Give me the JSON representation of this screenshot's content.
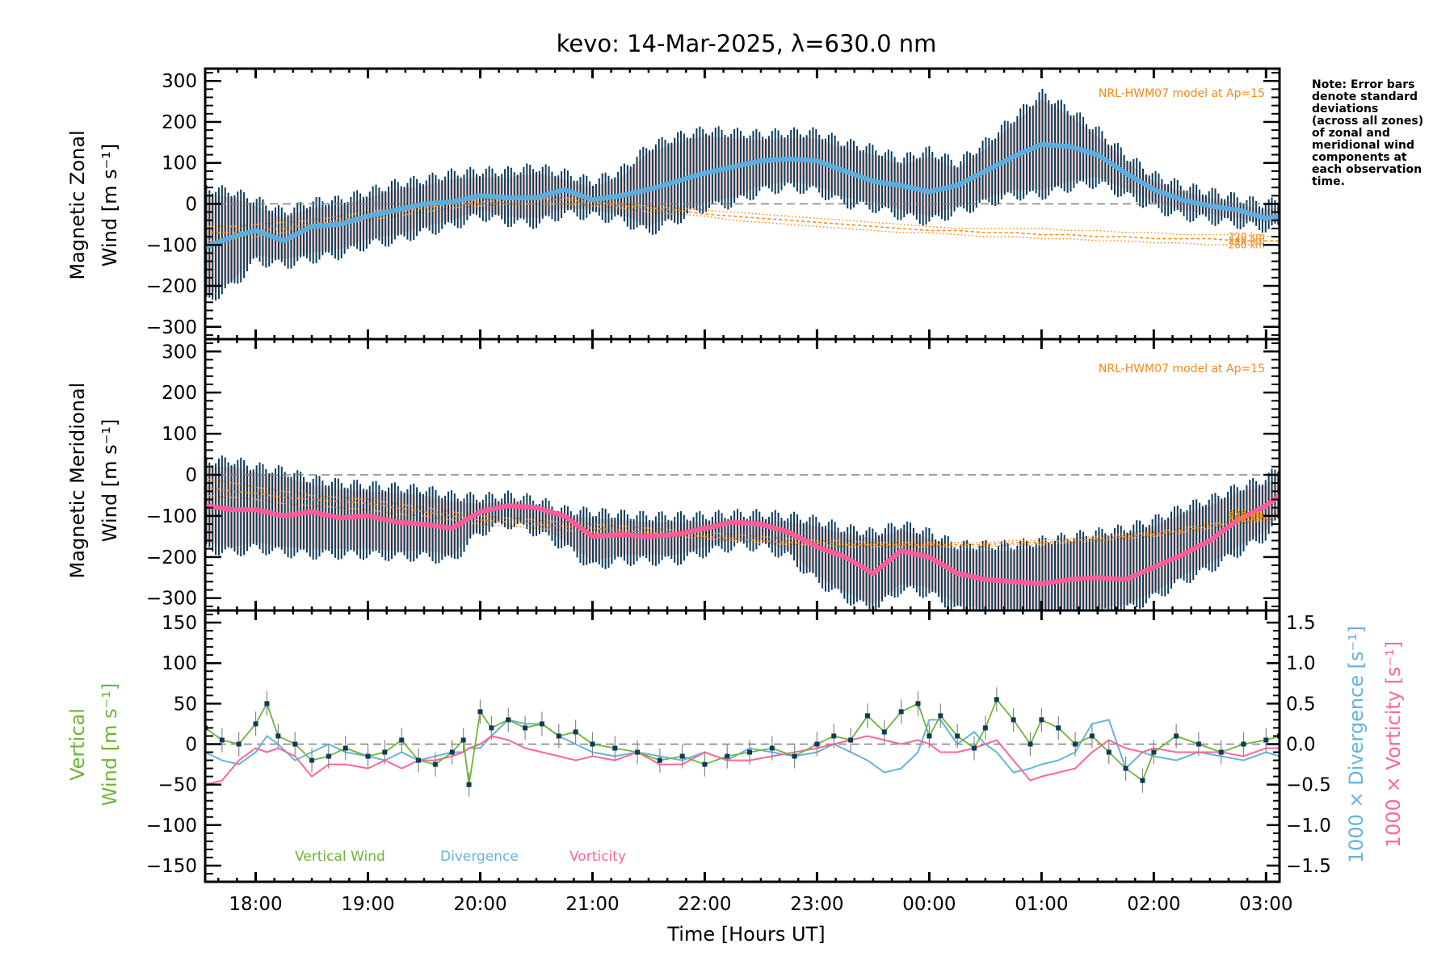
{
  "figure": {
    "title": "kevo: 14-Mar-2025, λ=630.0 nm",
    "note_lines": [
      "Note: Error bars",
      "denote standard",
      "deviations",
      "(across all zones)",
      "of zonal and",
      "meridional wind",
      "components at",
      "each observation",
      "time."
    ],
    "colors": {
      "zonal_mean": "#5aaee0",
      "meridional_mean": "#ff5a99",
      "errorbar": "#0d3b5c",
      "vertical": "#6fb535",
      "divergence": "#66b3dd",
      "vorticity": "#ff6699",
      "model": "#f28a17",
      "zero_line": "#808080",
      "scatter_lilac": "#b7b3de",
      "scatter_salmon": "#f9b8a6",
      "scatter_tan": "#fde0a6"
    }
  },
  "chart_data": [
    {
      "type": "line",
      "panel": "zonal",
      "ylabel_line1": "Magnetic Zonal",
      "ylabel_line2": "Wind [m s⁻¹]",
      "ylim": [
        -330,
        330
      ],
      "yticks": [
        300,
        200,
        100,
        0,
        -100,
        -200,
        -300
      ],
      "xlim_hours": [
        17.55,
        27.12
      ],
      "model_label": "NRL-HWM07 model at Ap=15",
      "model_altitudes": [
        "220 km",
        "240 km",
        "260 km"
      ],
      "zero_line": true,
      "x_hours": [
        17.55,
        17.8,
        18.0,
        18.25,
        18.5,
        18.75,
        19.0,
        19.25,
        19.5,
        19.75,
        20.0,
        20.25,
        20.5,
        20.75,
        21.0,
        21.25,
        21.5,
        21.75,
        22.0,
        22.25,
        22.5,
        22.75,
        23.0,
        23.25,
        23.5,
        23.75,
        24.0,
        24.25,
        24.5,
        24.75,
        25.0,
        25.25,
        25.5,
        25.75,
        26.0,
        26.25,
        26.5,
        26.75,
        27.0,
        27.12
      ],
      "series": [
        {
          "name": "Zonal mean",
          "values": [
            -105,
            -80,
            -65,
            -90,
            -55,
            -50,
            -30,
            -15,
            0,
            5,
            20,
            15,
            15,
            35,
            10,
            20,
            35,
            55,
            75,
            90,
            105,
            110,
            105,
            80,
            55,
            45,
            30,
            45,
            80,
            115,
            145,
            140,
            120,
            75,
            35,
            10,
            -5,
            -15,
            -35,
            -30
          ]
        },
        {
          "name": "Zonal std upper",
          "values": [
            40,
            30,
            10,
            -20,
            5,
            10,
            30,
            50,
            60,
            75,
            80,
            80,
            90,
            75,
            55,
            80,
            140,
            165,
            180,
            175,
            170,
            175,
            175,
            150,
            135,
            110,
            130,
            100,
            150,
            210,
            270,
            230,
            180,
            120,
            70,
            45,
            30,
            15,
            0,
            10
          ]
        },
        {
          "name": "Zonal std lower",
          "values": [
            -240,
            -200,
            -140,
            -150,
            -135,
            -125,
            -100,
            -90,
            -70,
            -55,
            -30,
            -45,
            -50,
            -25,
            -30,
            -40,
            -70,
            -40,
            -10,
            0,
            30,
            40,
            30,
            0,
            -10,
            -30,
            -45,
            -20,
            0,
            20,
            20,
            40,
            50,
            20,
            -10,
            -30,
            -40,
            -50,
            -60,
            -60
          ]
        },
        {
          "name": "HWM07 220 km",
          "values": [
            -55,
            -55,
            -50,
            -45,
            -40,
            -30,
            -20,
            -10,
            -5,
            5,
            10,
            15,
            15,
            15,
            10,
            0,
            -5,
            -10,
            -15,
            -20,
            -25,
            -30,
            -35,
            -40,
            -45,
            -50,
            -55,
            -60,
            -60,
            -60,
            -60,
            -65,
            -65,
            -70,
            -70,
            -75,
            -75,
            -75,
            -80,
            -80
          ]
        },
        {
          "name": "HWM07 240 km",
          "values": [
            -70,
            -70,
            -65,
            -60,
            -50,
            -40,
            -30,
            -20,
            -10,
            0,
            5,
            10,
            10,
            10,
            5,
            -5,
            -10,
            -15,
            -25,
            -30,
            -35,
            -40,
            -45,
            -50,
            -55,
            -60,
            -65,
            -65,
            -70,
            -70,
            -75,
            -75,
            -80,
            -80,
            -85,
            -85,
            -85,
            -90,
            -90,
            -90
          ]
        },
        {
          "name": "HWM07 260 km",
          "values": [
            -90,
            -85,
            -80,
            -70,
            -60,
            -50,
            -40,
            -30,
            -20,
            -10,
            -5,
            0,
            0,
            0,
            -5,
            -10,
            -20,
            -25,
            -30,
            -40,
            -45,
            -50,
            -55,
            -60,
            -65,
            -70,
            -70,
            -75,
            -80,
            -80,
            -85,
            -85,
            -90,
            -90,
            -95,
            -95,
            -100,
            -100,
            -100,
            -100
          ]
        }
      ]
    },
    {
      "type": "line",
      "panel": "meridional",
      "ylabel_line1": "Magnetic Meridional",
      "ylabel_line2": "Wind [m s⁻¹]",
      "ylim": [
        -330,
        330
      ],
      "yticks": [
        300,
        200,
        100,
        0,
        -100,
        -200,
        -300
      ],
      "xlim_hours": [
        17.55,
        27.12
      ],
      "model_label": "NRL-HWM07 model at Ap=15",
      "model_altitudes": [
        "220 km",
        "240 km",
        "260 km"
      ],
      "zero_line": true,
      "x_hours": [
        17.55,
        17.8,
        18.0,
        18.25,
        18.5,
        18.75,
        19.0,
        19.25,
        19.5,
        19.75,
        20.0,
        20.25,
        20.5,
        20.75,
        21.0,
        21.25,
        21.5,
        21.75,
        22.0,
        22.25,
        22.5,
        22.75,
        23.0,
        23.25,
        23.5,
        23.75,
        24.0,
        24.25,
        24.5,
        24.75,
        25.0,
        25.25,
        25.5,
        25.75,
        26.0,
        26.25,
        26.5,
        26.75,
        27.0,
        27.12
      ],
      "series": [
        {
          "name": "Meridional mean",
          "values": [
            -75,
            -85,
            -85,
            -100,
            -90,
            -105,
            -100,
            -115,
            -120,
            -130,
            -90,
            -75,
            -80,
            -100,
            -150,
            -145,
            -150,
            -145,
            -130,
            -115,
            -120,
            -140,
            -175,
            -200,
            -240,
            -185,
            -200,
            -240,
            -255,
            -260,
            -265,
            -255,
            -250,
            -255,
            -225,
            -195,
            -160,
            -110,
            -75,
            -50
          ]
        },
        {
          "name": "Meridional std upper",
          "values": [
            35,
            35,
            20,
            10,
            -10,
            -20,
            -25,
            -30,
            -35,
            -50,
            -55,
            -50,
            -60,
            -85,
            -90,
            -95,
            -100,
            -100,
            -100,
            -95,
            -95,
            -100,
            -110,
            -130,
            -140,
            -120,
            -140,
            -170,
            -170,
            -170,
            -160,
            -150,
            -140,
            -130,
            -110,
            -80,
            -60,
            -30,
            -10,
            20
          ]
        },
        {
          "name": "Meridional std lower",
          "values": [
            -180,
            -190,
            -180,
            -190,
            -195,
            -195,
            -195,
            -200,
            -200,
            -210,
            -140,
            -120,
            -140,
            -175,
            -225,
            -210,
            -210,
            -210,
            -190,
            -175,
            -175,
            -200,
            -260,
            -300,
            -330,
            -280,
            -290,
            -330,
            -340,
            -340,
            -340,
            -340,
            -340,
            -330,
            -300,
            -260,
            -230,
            -190,
            -150,
            -110
          ]
        },
        {
          "name": "HWM07 220 km",
          "values": [
            -10,
            -20,
            -30,
            -40,
            -50,
            -55,
            -60,
            -70,
            -80,
            -90,
            -100,
            -105,
            -110,
            -115,
            -120,
            -125,
            -130,
            -135,
            -140,
            -145,
            -150,
            -155,
            -160,
            -160,
            -165,
            -165,
            -165,
            -165,
            -165,
            -160,
            -160,
            -155,
            -150,
            -145,
            -140,
            -130,
            -120,
            -110,
            -100,
            -95
          ]
        },
        {
          "name": "HWM07 240 km",
          "values": [
            -30,
            -40,
            -45,
            -55,
            -60,
            -65,
            -70,
            -80,
            -90,
            -100,
            -110,
            -115,
            -120,
            -125,
            -130,
            -135,
            -140,
            -145,
            -150,
            -155,
            -160,
            -165,
            -165,
            -170,
            -170,
            -170,
            -170,
            -170,
            -170,
            -165,
            -165,
            -160,
            -155,
            -150,
            -145,
            -135,
            -125,
            -115,
            -105,
            -100
          ]
        },
        {
          "name": "HWM07 260 km",
          "values": [
            -50,
            -55,
            -60,
            -70,
            -75,
            -80,
            -85,
            -95,
            -100,
            -110,
            -120,
            -125,
            -130,
            -135,
            -140,
            -145,
            -150,
            -150,
            -155,
            -160,
            -165,
            -170,
            -170,
            -175,
            -175,
            -175,
            -175,
            -175,
            -175,
            -170,
            -170,
            -165,
            -160,
            -155,
            -150,
            -140,
            -130,
            -120,
            -110,
            -105
          ]
        }
      ]
    },
    {
      "type": "line",
      "panel": "vertical",
      "ylabel_line1": "Vertical",
      "ylabel_line2": "Wind [m s⁻¹]",
      "ylim": [
        -170,
        165
      ],
      "yticks": [
        150,
        100,
        50,
        0,
        -50,
        -100,
        -150
      ],
      "y2label_div": "1000 × Divergence [s⁻¹]",
      "y2label_vor": "1000 × Vorticity [s⁻¹]",
      "y2lim": [
        -1.7,
        1.65
      ],
      "y2ticks": [
        "1.5",
        "1.0",
        "0.5",
        "0.0",
        "−0.5",
        "−1.0",
        "−1.5"
      ],
      "y2tick_values": [
        1.5,
        1.0,
        0.5,
        0.0,
        -0.5,
        -1.0,
        -1.5
      ],
      "xlim_hours": [
        17.55,
        27.12
      ],
      "xticks": [
        "18:00",
        "19:00",
        "20:00",
        "21:00",
        "22:00",
        "23:00",
        "00:00",
        "01:00",
        "02:00",
        "03:00"
      ],
      "xtick_hours": [
        18,
        19,
        20,
        21,
        22,
        23,
        24,
        25,
        26,
        27
      ],
      "xlabel": "Time [Hours UT]",
      "legend": [
        "Vertical Wind",
        "Divergence",
        "Vorticity"
      ],
      "legend_position": "bottom-left inside",
      "zero_line": true,
      "x_hours": [
        17.55,
        17.7,
        17.85,
        18.0,
        18.1,
        18.2,
        18.35,
        18.5,
        18.65,
        18.8,
        19.0,
        19.15,
        19.3,
        19.45,
        19.6,
        19.75,
        19.85,
        19.9,
        20.0,
        20.1,
        20.25,
        20.4,
        20.55,
        20.7,
        20.85,
        21.0,
        21.2,
        21.4,
        21.6,
        21.8,
        22.0,
        22.2,
        22.4,
        22.6,
        22.8,
        23.0,
        23.15,
        23.3,
        23.45,
        23.6,
        23.75,
        23.9,
        24.0,
        24.1,
        24.25,
        24.4,
        24.5,
        24.6,
        24.75,
        24.9,
        25.0,
        25.15,
        25.3,
        25.45,
        25.6,
        25.75,
        25.9,
        26.0,
        26.2,
        26.4,
        26.6,
        26.8,
        27.0,
        27.12
      ],
      "series": [
        {
          "name": "Vertical Wind",
          "values": [
            20,
            5,
            0,
            25,
            50,
            10,
            0,
            -20,
            -15,
            -5,
            -15,
            -10,
            5,
            -20,
            -25,
            -10,
            5,
            -50,
            40,
            20,
            30,
            20,
            25,
            10,
            15,
            0,
            -5,
            -10,
            -20,
            -15,
            -25,
            -15,
            -10,
            -5,
            -15,
            0,
            10,
            5,
            35,
            15,
            40,
            50,
            10,
            35,
            10,
            -5,
            20,
            55,
            30,
            0,
            30,
            20,
            0,
            10,
            -10,
            -30,
            -45,
            -10,
            10,
            0,
            -10,
            0,
            5,
            10
          ]
        },
        {
          "name": "Divergence",
          "values": [
            -0.1,
            -0.2,
            -0.25,
            -0.1,
            0.1,
            0.0,
            -0.2,
            -0.1,
            0.0,
            -0.1,
            -0.15,
            -0.2,
            -0.1,
            -0.2,
            -0.15,
            -0.1,
            -0.1,
            -0.05,
            -0.05,
            0.1,
            0.3,
            0.25,
            0.25,
            0.1,
            0.0,
            -0.1,
            -0.15,
            -0.1,
            -0.15,
            -0.2,
            -0.1,
            -0.2,
            -0.05,
            -0.1,
            -0.15,
            -0.1,
            0.0,
            -0.1,
            -0.2,
            -0.35,
            -0.3,
            -0.1,
            0.3,
            0.3,
            0.0,
            0.15,
            0.0,
            -0.1,
            -0.35,
            -0.3,
            -0.25,
            -0.2,
            -0.1,
            0.25,
            0.3,
            -0.3,
            -0.1,
            -0.15,
            -0.2,
            -0.1,
            -0.15,
            -0.2,
            -0.1,
            -0.15
          ]
        },
        {
          "name": "Vorticity",
          "values": [
            -0.5,
            -0.45,
            -0.2,
            -0.05,
            -0.1,
            -0.05,
            -0.15,
            -0.4,
            -0.25,
            -0.25,
            -0.3,
            -0.2,
            -0.3,
            -0.2,
            -0.2,
            -0.15,
            -0.1,
            -0.05,
            0.0,
            0.1,
            0.05,
            -0.05,
            -0.1,
            -0.15,
            -0.2,
            -0.15,
            -0.2,
            -0.1,
            -0.25,
            -0.25,
            -0.1,
            -0.2,
            -0.2,
            -0.15,
            -0.1,
            -0.05,
            0.0,
            0.05,
            0.1,
            0.05,
            0.0,
            0.05,
            0.0,
            -0.1,
            -0.1,
            -0.05,
            0.0,
            0.05,
            -0.2,
            -0.45,
            -0.4,
            -0.35,
            -0.3,
            -0.1,
            0.05,
            -0.05,
            -0.1,
            -0.05,
            -0.1,
            -0.1,
            -0.1,
            -0.15,
            -0.05,
            -0.05
          ]
        }
      ]
    }
  ]
}
